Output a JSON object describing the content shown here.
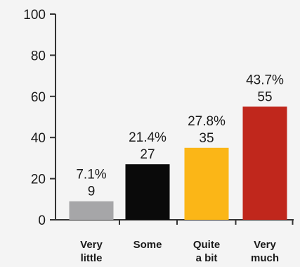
{
  "chart_data": {
    "type": "bar",
    "title": "",
    "xlabel": "",
    "ylabel": "",
    "ylim": [
      0,
      100
    ],
    "yticks": [
      0,
      20,
      40,
      60,
      80,
      100
    ],
    "grid": false,
    "categories": [
      [
        "Very",
        "little"
      ],
      [
        "Some"
      ],
      [
        "Quite",
        "a bit"
      ],
      [
        "Very",
        "much"
      ]
    ],
    "values": [
      9,
      27,
      35,
      55
    ],
    "percent_labels": [
      "7.1%",
      "21.4%",
      "27.8%",
      "43.7%"
    ],
    "value_labels": [
      "9",
      "27",
      "35",
      "55"
    ],
    "colors": [
      "#a6a6a8",
      "#0a0a0a",
      "#fbb617",
      "#c0271c"
    ],
    "axis_color": "#333333"
  }
}
